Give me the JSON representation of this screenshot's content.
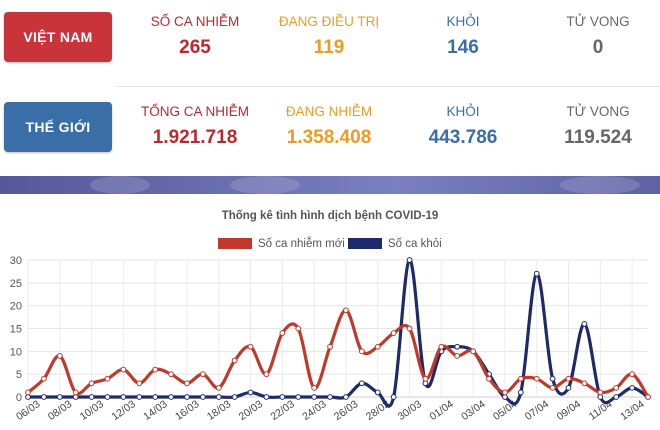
{
  "vietnam": {
    "label": "VIỆT NAM",
    "stats": [
      {
        "label": "SỐ CA NHIỄM",
        "value": "265"
      },
      {
        "label": "ĐANG ĐIỀU TRỊ",
        "value": "119"
      },
      {
        "label": "KHỎI",
        "value": "146"
      },
      {
        "label": "TỬ VONG",
        "value": "0"
      }
    ]
  },
  "world": {
    "label": "THẾ GIỚI",
    "stats": [
      {
        "label": "TỔNG CA NHIỄM",
        "value": "1.921.718"
      },
      {
        "label": "ĐANG NHIỄM",
        "value": "1.358.408"
      },
      {
        "label": "KHỎI",
        "value": "443.786"
      },
      {
        "label": "TỬ VONG",
        "value": "119.524"
      }
    ]
  },
  "colors": {
    "red": "#c0272d",
    "orange": "#ef9b21",
    "blue": "#3a6ea7",
    "gray": "#666666",
    "series_new": "#c0392b",
    "series_recovered": "#1f2a6b"
  },
  "chart_data": {
    "type": "line",
    "title": "Thống kê tình hình dịch bệnh COVID-19",
    "xlabel": "",
    "ylabel": "",
    "ylim": [
      0,
      30
    ],
    "yticks": [
      0,
      5,
      10,
      15,
      20,
      25,
      30
    ],
    "grid": true,
    "legend_position": "top",
    "x": [
      "06/03",
      "07/03",
      "08/03",
      "09/03",
      "10/03",
      "11/03",
      "12/03",
      "13/03",
      "14/03",
      "15/03",
      "16/03",
      "17/03",
      "18/03",
      "19/03",
      "20/03",
      "21/03",
      "22/03",
      "23/03",
      "24/03",
      "25/03",
      "26/03",
      "27/03",
      "28/03",
      "29/03",
      "30/03",
      "31/03",
      "01/04",
      "02/04",
      "03/04",
      "04/04",
      "05/04",
      "06/04",
      "07/04",
      "08/04",
      "09/04",
      "10/04",
      "11/04",
      "12/04",
      "13/04",
      "14/04"
    ],
    "xtick_labels": [
      "06/03",
      "08/03",
      "10/03",
      "12/03",
      "14/03",
      "16/03",
      "18/03",
      "20/03",
      "22/03",
      "24/03",
      "26/03",
      "28/03",
      "30/03",
      "01/04",
      "03/04",
      "05/04",
      "07/04",
      "09/04",
      "11/04",
      "13/04"
    ],
    "series": [
      {
        "name": "Số ca nhiễm mới",
        "values": [
          1,
          4,
          9,
          1,
          3,
          4,
          6,
          3,
          6,
          5,
          3,
          5,
          2,
          8,
          11,
          5,
          14,
          15,
          2,
          11,
          19,
          10,
          11,
          14,
          15,
          4,
          11,
          9,
          10,
          4,
          1,
          4,
          4,
          2,
          4,
          3,
          1,
          2,
          5,
          0
        ]
      },
      {
        "name": "Số ca khỏi",
        "values": [
          0,
          0,
          0,
          0,
          0,
          0,
          0,
          0,
          0,
          0,
          0,
          0,
          0,
          0,
          1,
          0,
          0,
          0,
          0,
          0,
          0,
          3,
          1,
          0,
          30,
          3,
          10,
          11,
          10,
          5,
          0,
          1,
          27,
          4,
          2,
          16,
          0,
          0,
          2,
          0
        ]
      }
    ]
  }
}
